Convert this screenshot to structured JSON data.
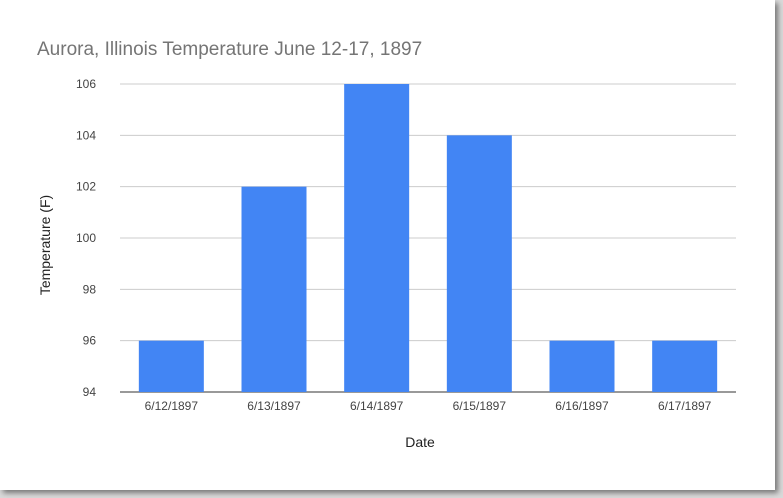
{
  "chart_data": {
    "type": "bar",
    "title": "Aurora, Illinois Temperature June 12-17, 1897",
    "xlabel": "Date",
    "ylabel": "Temperature (F)",
    "categories": [
      "6/12/1897",
      "6/13/1897",
      "6/14/1897",
      "6/15/1897",
      "6/16/1897",
      "6/17/1897"
    ],
    "values": [
      96,
      102,
      106,
      104,
      96,
      96
    ],
    "ylim": [
      94,
      106
    ],
    "yticks": [
      "94",
      "96",
      "98",
      "100",
      "102",
      "104",
      "106"
    ],
    "grid": true,
    "legend": "none",
    "bar_color": "#4285f4",
    "grid_color": "#cccccc",
    "title_color": "#757575"
  }
}
